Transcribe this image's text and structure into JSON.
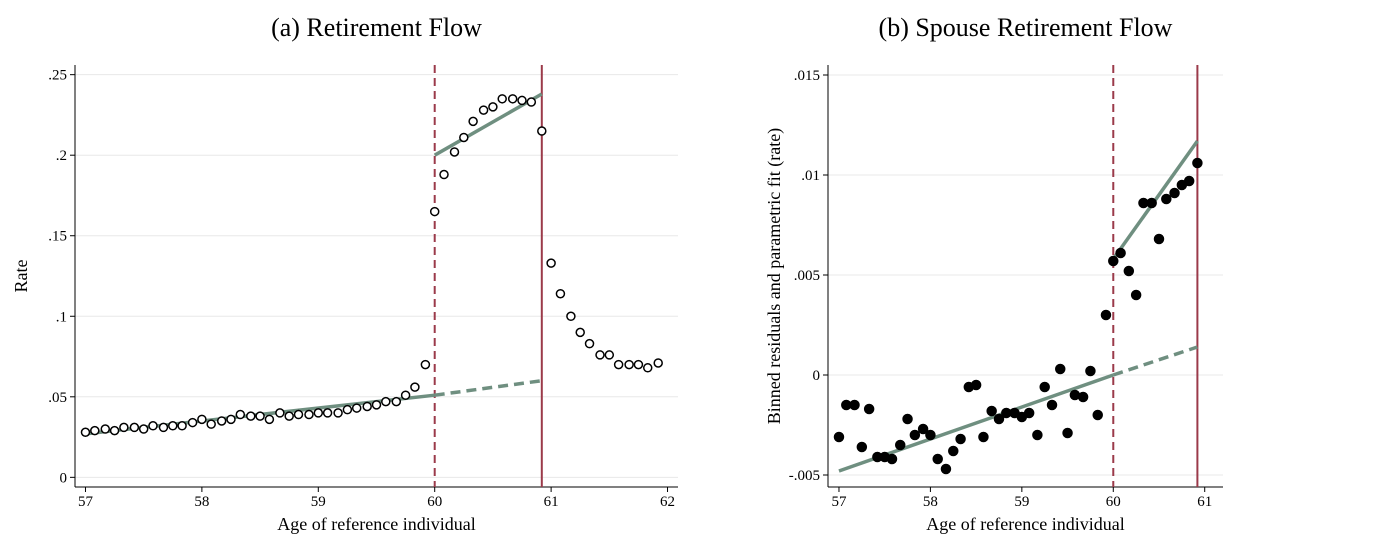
{
  "chart_data": [
    {
      "type": "scatter",
      "title": "(a) Retirement Flow",
      "xlabel": "Age of reference individual",
      "ylabel": "Rate",
      "marker": "hollow",
      "color": "#000000",
      "fit_color": "#6f8f80",
      "vline_color": "#9b3a4a",
      "grid": true,
      "xlim": [
        56.91,
        62.09
      ],
      "ylim": [
        -0.006,
        0.256
      ],
      "xticks": [
        57,
        58,
        59,
        60,
        61,
        62
      ],
      "yticks": [
        0,
        {
          "value": 0.05,
          "label": ".05"
        },
        {
          "value": 0.1,
          "label": ".1"
        },
        {
          "value": 0.15,
          "label": ".15"
        },
        {
          "value": 0.2,
          "label": ".2"
        },
        {
          "value": 0.25,
          "label": ".25"
        }
      ],
      "x": [
        57.0,
        57.08,
        57.17,
        57.25,
        57.33,
        57.42,
        57.5,
        57.58,
        57.67,
        57.75,
        57.83,
        57.92,
        58.0,
        58.08,
        58.17,
        58.25,
        58.33,
        58.42,
        58.5,
        58.58,
        58.67,
        58.75,
        58.83,
        58.92,
        59.0,
        59.08,
        59.17,
        59.25,
        59.33,
        59.42,
        59.5,
        59.58,
        59.67,
        59.75,
        59.83,
        59.92,
        60.0,
        60.08,
        60.17,
        60.25,
        60.33,
        60.42,
        60.5,
        60.58,
        60.67,
        60.75,
        60.83,
        60.92,
        61.0,
        61.08,
        61.17,
        61.25,
        61.33,
        61.42,
        61.5,
        61.58,
        61.67,
        61.75,
        61.83,
        61.92
      ],
      "values": [
        0.028,
        0.029,
        0.03,
        0.029,
        0.031,
        0.031,
        0.03,
        0.032,
        0.031,
        0.032,
        0.032,
        0.034,
        0.036,
        0.033,
        0.035,
        0.036,
        0.039,
        0.038,
        0.038,
        0.036,
        0.04,
        0.038,
        0.039,
        0.039,
        0.04,
        0.04,
        0.04,
        0.042,
        0.043,
        0.044,
        0.045,
        0.047,
        0.047,
        0.051,
        0.056,
        0.07,
        0.165,
        0.188,
        0.202,
        0.211,
        0.221,
        0.228,
        0.23,
        0.235,
        0.235,
        0.234,
        0.233,
        0.215,
        0.133,
        0.114,
        0.1,
        0.09,
        0.083,
        0.076,
        0.076,
        0.07,
        0.07,
        0.07,
        0.068,
        0.071
      ],
      "fits": [
        {
          "x": [
            57,
            60
          ],
          "y": [
            0.027,
            0.051
          ],
          "style": "solid"
        },
        {
          "x": [
            60,
            60.92
          ],
          "y": [
            0.051,
            0.06
          ],
          "style": "dashed"
        },
        {
          "x": [
            60,
            60.92
          ],
          "y": [
            0.2,
            0.238
          ],
          "style": "solid"
        }
      ],
      "vlines": [
        {
          "x": 60,
          "style": "dashed"
        },
        {
          "x": 60.92,
          "style": "solid"
        }
      ]
    },
    {
      "type": "scatter",
      "title": "(b) Spouse Retirement Flow",
      "xlabel": "Age of reference individual",
      "ylabel": "Binned residuals and parametric fit (rate)",
      "marker": "filled",
      "color": "#000000",
      "fit_color": "#6f8f80",
      "vline_color": "#9b3a4a",
      "grid": true,
      "xlim": [
        56.88,
        61.2
      ],
      "ylim": [
        -0.0056,
        0.0155
      ],
      "xticks": [
        57,
        58,
        59,
        60,
        61
      ],
      "yticks": [
        {
          "value": -0.005,
          "label": "-.005"
        },
        0,
        {
          "value": 0.005,
          "label": ".005"
        },
        {
          "value": 0.01,
          "label": ".01"
        },
        {
          "value": 0.015,
          "label": ".015"
        }
      ],
      "x": [
        57.0,
        57.08,
        57.17,
        57.25,
        57.33,
        57.42,
        57.5,
        57.58,
        57.67,
        57.75,
        57.83,
        57.92,
        58.0,
        58.08,
        58.17,
        58.25,
        58.33,
        58.42,
        58.5,
        58.58,
        58.67,
        58.75,
        58.83,
        58.92,
        59.0,
        59.08,
        59.17,
        59.25,
        59.33,
        59.42,
        59.5,
        59.58,
        59.67,
        59.75,
        59.83,
        59.92,
        60.0,
        60.08,
        60.17,
        60.25,
        60.33,
        60.42,
        60.5,
        60.58,
        60.67,
        60.75,
        60.83,
        60.92
      ],
      "values": [
        -0.0031,
        -0.0015,
        -0.0015,
        -0.0036,
        -0.0017,
        -0.0041,
        -0.0041,
        -0.0042,
        -0.0035,
        -0.0022,
        -0.003,
        -0.0027,
        -0.003,
        -0.0042,
        -0.0047,
        -0.0038,
        -0.0032,
        -0.0006,
        -0.0005,
        -0.0031,
        -0.0018,
        -0.0022,
        -0.0019,
        -0.0019,
        -0.0021,
        -0.0019,
        -0.003,
        -0.0006,
        -0.0015,
        0.0003,
        -0.0029,
        -0.001,
        -0.0011,
        0.0002,
        -0.002,
        0.003,
        0.0057,
        0.0061,
        0.0052,
        0.004,
        0.0086,
        0.0086,
        0.0068,
        0.0088,
        0.0091,
        0.0095,
        0.0097,
        0.0106
      ],
      "fits": [
        {
          "x": [
            57,
            60
          ],
          "y": [
            -0.0048,
            0.0
          ],
          "style": "solid"
        },
        {
          "x": [
            60,
            60.92
          ],
          "y": [
            0.0,
            0.0014
          ],
          "style": "dashed"
        },
        {
          "x": [
            60,
            60.92
          ],
          "y": [
            0.0058,
            0.0117
          ],
          "style": "solid"
        }
      ],
      "vlines": [
        {
          "x": 60,
          "style": "dashed"
        },
        {
          "x": 60.92,
          "style": "solid"
        }
      ]
    }
  ]
}
